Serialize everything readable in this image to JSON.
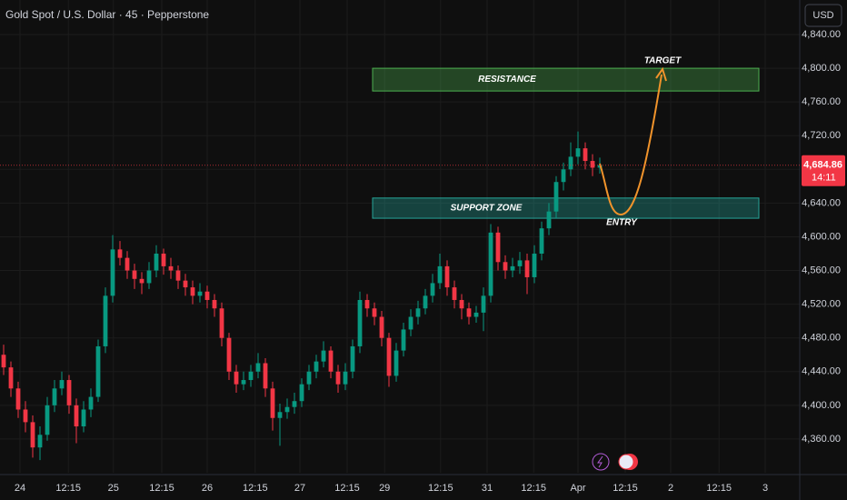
{
  "chart_data": {
    "type": "candlestick",
    "title": "Gold Spot / U.S. Dollar · 45 · Pepperstone",
    "currency": "USD",
    "up_color": "#089981",
    "down_color": "#f23645",
    "open": [
      4460,
      4445,
      4420,
      4395,
      4380,
      4350,
      4365,
      4400,
      4420,
      4430,
      4400,
      4375,
      4395,
      4410,
      4470,
      4530,
      4585,
      4575,
      4560,
      4550,
      4545,
      4560,
      4580,
      4565,
      4560,
      4548,
      4540,
      4530,
      4535,
      4525,
      4515,
      4480,
      4440,
      4425,
      4430,
      4440,
      4450,
      4420,
      4385,
      4392,
      4398,
      4405,
      4425,
      4440,
      4452,
      4465,
      4440,
      4425,
      4440,
      4470,
      4525,
      4515,
      4505,
      4480,
      4435,
      4465,
      4490,
      4505,
      4515,
      4530,
      4545,
      4565,
      4540,
      4525,
      4515,
      4505,
      4510,
      4530,
      4605,
      4570,
      4560,
      4565,
      4572,
      4552,
      4580,
      4610,
      4630,
      4665,
      4680,
      4695,
      4705,
      4690,
      4682
    ],
    "high": [
      4472,
      4452,
      4428,
      4405,
      4388,
      4375,
      4410,
      4430,
      4440,
      4436,
      4408,
      4405,
      4420,
      4478,
      4540,
      4602,
      4595,
      4583,
      4568,
      4558,
      4570,
      4590,
      4586,
      4575,
      4566,
      4556,
      4548,
      4545,
      4542,
      4532,
      4522,
      4486,
      4448,
      4440,
      4448,
      4462,
      4456,
      4428,
      4402,
      4408,
      4415,
      4432,
      4448,
      4460,
      4476,
      4470,
      4448,
      4450,
      4478,
      4535,
      4532,
      4522,
      4512,
      4486,
      4474,
      4498,
      4514,
      4524,
      4538,
      4556,
      4580,
      4572,
      4548,
      4532,
      4522,
      4518,
      4540,
      4615,
      4612,
      4578,
      4575,
      4582,
      4580,
      4590,
      4618,
      4640,
      4672,
      4688,
      4712,
      4725,
      4712,
      4698,
      4694
    ],
    "low": [
      4436,
      4410,
      4385,
      4368,
      4338,
      4335,
      4358,
      4392,
      4412,
      4390,
      4355,
      4368,
      4386,
      4404,
      4462,
      4522,
      4566,
      4550,
      4538,
      4532,
      4538,
      4552,
      4555,
      4550,
      4538,
      4530,
      4520,
      4522,
      4515,
      4505,
      4470,
      4430,
      4415,
      4418,
      4422,
      4432,
      4410,
      4370,
      4352,
      4384,
      4390,
      4398,
      4418,
      4432,
      4445,
      4432,
      4415,
      4418,
      4432,
      4462,
      4505,
      4495,
      4470,
      4422,
      4428,
      4458,
      4482,
      4496,
      4508,
      4522,
      4538,
      4530,
      4515,
      4502,
      4496,
      4498,
      4488,
      4522,
      4560,
      4550,
      4552,
      4556,
      4532,
      4545,
      4572,
      4602,
      4622,
      4655,
      4672,
      4686,
      4680,
      4672,
      4675
    ],
    "close": [
      4445,
      4420,
      4395,
      4380,
      4350,
      4365,
      4400,
      4420,
      4430,
      4400,
      4375,
      4395,
      4410,
      4470,
      4530,
      4585,
      4575,
      4560,
      4550,
      4545,
      4560,
      4580,
      4565,
      4560,
      4548,
      4540,
      4530,
      4535,
      4525,
      4515,
      4480,
      4440,
      4425,
      4430,
      4440,
      4450,
      4420,
      4385,
      4392,
      4398,
      4405,
      4425,
      4440,
      4452,
      4465,
      4440,
      4425,
      4440,
      4470,
      4525,
      4515,
      4505,
      4480,
      4435,
      4465,
      4490,
      4505,
      4515,
      4530,
      4545,
      4565,
      4540,
      4525,
      4515,
      4505,
      4510,
      4530,
      4605,
      4570,
      4560,
      4565,
      4572,
      4552,
      4580,
      4610,
      4630,
      4665,
      4680,
      4695,
      4705,
      4690,
      4682,
      4685
    ],
    "last_price": {
      "value": 4684.86,
      "label": "4,684.86"
    },
    "countdown": "14:11",
    "xlim": [
      -0.5,
      109.5
    ],
    "xticks": [
      {
        "value": 2.25,
        "label": "24"
      },
      {
        "value": 8.9,
        "label": "12:15"
      },
      {
        "value": 15.1,
        "label": "25"
      },
      {
        "value": 21.75,
        "label": "12:15"
      },
      {
        "value": 28,
        "label": "26"
      },
      {
        "value": 34.6,
        "label": "12:15"
      },
      {
        "value": 40.75,
        "label": "27"
      },
      {
        "value": 47.25,
        "label": "12:15"
      },
      {
        "value": 52.4,
        "label": "29"
      },
      {
        "value": 60.1,
        "label": "12:15"
      },
      {
        "value": 66.5,
        "label": "31"
      },
      {
        "value": 72.9,
        "label": "12:15"
      },
      {
        "value": 79,
        "label": "Apr"
      },
      {
        "value": 85.5,
        "label": "12:15"
      },
      {
        "value": 91.75,
        "label": "2"
      },
      {
        "value": 98.4,
        "label": "12:15"
      },
      {
        "value": 104.75,
        "label": "3"
      }
    ],
    "ylim": [
      4320,
      4881
    ],
    "yticks": [
      {
        "value": 4360,
        "label": "4,360.00"
      },
      {
        "value": 4400,
        "label": "4,400.00"
      },
      {
        "value": 4440,
        "label": "4,440.00"
      },
      {
        "value": 4480,
        "label": "4,480.00"
      },
      {
        "value": 4520,
        "label": "4,520.00"
      },
      {
        "value": 4560,
        "label": "4,560.00"
      },
      {
        "value": 4600,
        "label": "4,600.00"
      },
      {
        "value": 4640,
        "label": "4,640.00"
      },
      {
        "value": 4680,
        "label": "4,680.00"
      },
      {
        "value": 4720,
        "label": "4,720.00"
      },
      {
        "value": 4760,
        "label": "4,760.00"
      },
      {
        "value": 4800,
        "label": "4,800.00"
      },
      {
        "value": 4840,
        "label": "4,840.00"
      }
    ],
    "grid": true,
    "zones": [
      {
        "label": "RESISTANCE",
        "low": 4773,
        "high": 4800,
        "color": "#4caf50"
      },
      {
        "label": "SUPPORT ZONE",
        "low": 4622,
        "high": 4646,
        "color": "#26a69a"
      }
    ],
    "annotations": [
      "TARGET",
      "ENTRY"
    ]
  }
}
